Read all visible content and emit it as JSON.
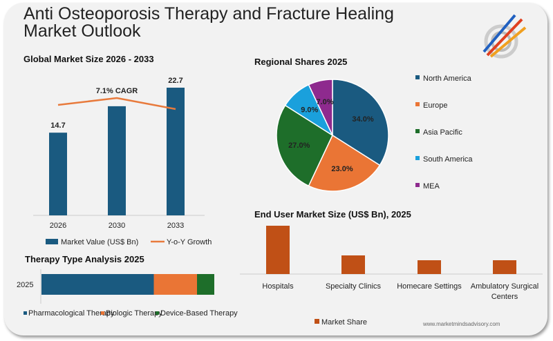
{
  "title": "Anti Osteoporosis Therapy and Fracture Healing Market Outlook",
  "website": "www.marketmindsadvisory.com",
  "colors": {
    "blue": "#1a5a80",
    "orange": "#ea7535",
    "green": "#1e6e2a",
    "light_blue": "#1aa0dc",
    "purple": "#8e2a8e",
    "rust": "#c05016",
    "line": "#e87a3c"
  },
  "chart_data": [
    {
      "type": "bar",
      "title": "Global Market Size 2026 - 2033",
      "categories": [
        "2026",
        "2030",
        "2033"
      ],
      "series": [
        {
          "name": "Market Value (US$ Bn)",
          "values": [
            14.7,
            19.4,
            22.7
          ]
        },
        {
          "name": "Y-o-Y Growth",
          "type": "line",
          "values": [
            null,
            null,
            null
          ]
        }
      ],
      "data_labels": [
        "14.7",
        "",
        "22.7"
      ],
      "annotation": "7.1% CAGR"
    },
    {
      "type": "pie",
      "title": "Regional Shares 2025",
      "categories": [
        "North America",
        "Europe",
        "Asia Pacific",
        "South America",
        "MEA"
      ],
      "values": [
        34.0,
        23.0,
        27.0,
        9.0,
        7.0
      ],
      "data_labels": [
        "34.0%",
        "23.0%",
        "27.0%",
        "9.0%",
        "7.0%"
      ],
      "legend": "right"
    },
    {
      "type": "bar",
      "orientation": "horizontal-stacked",
      "title": "Therapy Type Analysis 2025",
      "categories": [
        "2025"
      ],
      "series": [
        {
          "name": "Pharmacological Therapy",
          "values": [
            65
          ]
        },
        {
          "name": "Biologic Therapy",
          "values": [
            25
          ]
        },
        {
          "name": "Device-Based Therapy",
          "values": [
            10
          ]
        }
      ],
      "legend": "bottom"
    },
    {
      "type": "bar",
      "title": "End User Market Size (US$ Bn), 2025",
      "categories": [
        "Hospitals",
        "Specialty Clinics",
        "Homecare Settings",
        "Ambulatory Surgical Centers"
      ],
      "series": [
        {
          "name": "Market Share",
          "values": [
            3.5,
            1.35,
            1.0,
            1.0
          ]
        }
      ],
      "legend": "bottom"
    }
  ]
}
